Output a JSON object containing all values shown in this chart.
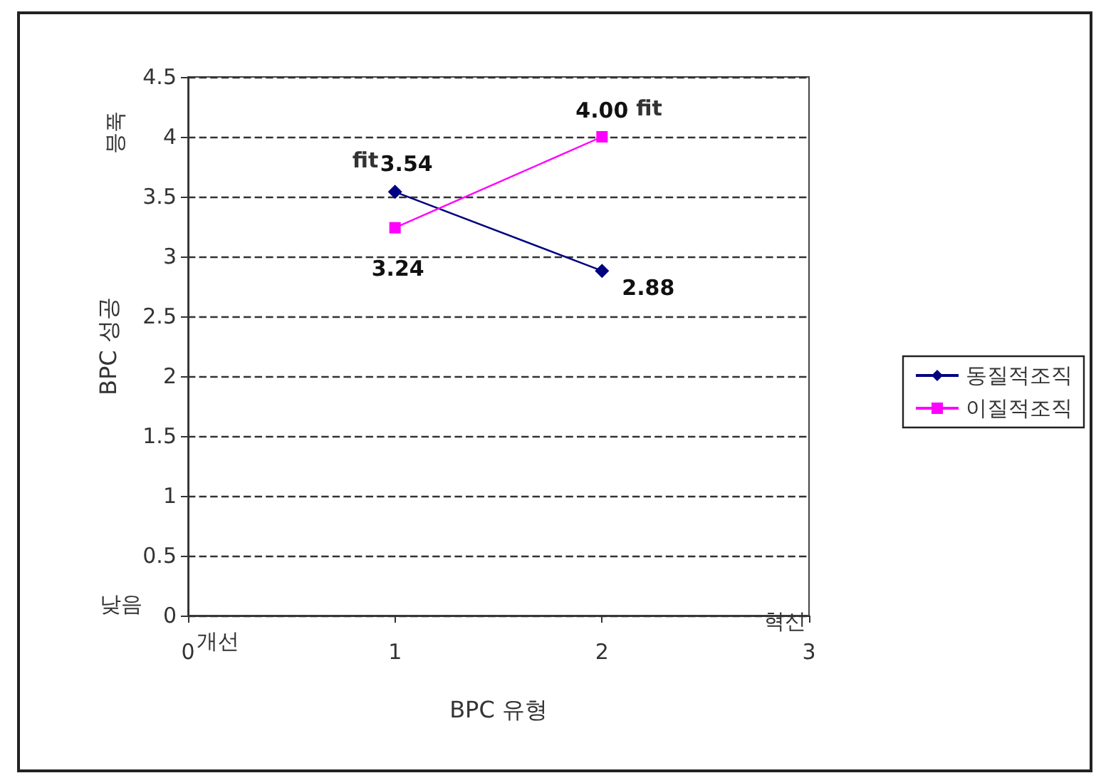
{
  "chart_data": {
    "type": "line",
    "x": [
      1,
      2
    ],
    "series": [
      {
        "name": "동질적조직",
        "color": "#000080",
        "marker": "diamond",
        "values": [
          3.54,
          2.88
        ],
        "value_labels": [
          "3.54",
          "2.88"
        ]
      },
      {
        "name": "이질적조직",
        "color": "#ff00ff",
        "marker": "square",
        "values": [
          3.24,
          4.0
        ],
        "value_labels": [
          "3.24",
          "4.00"
        ]
      }
    ],
    "xlabel": "BPC 유형",
    "ylabel": "BPC 성공",
    "xlim": [
      0,
      3
    ],
    "xticks": [
      0,
      1,
      2,
      3
    ],
    "ylim": [
      0,
      4.5
    ],
    "yticks": [
      0,
      0.5,
      1,
      1.5,
      2,
      2.5,
      3,
      3.5,
      4,
      4.5
    ],
    "grid": "y",
    "legend": "right",
    "annotations": [
      {
        "text": "fit",
        "x": 1,
        "y": 3.54
      },
      {
        "text": "fit",
        "x": 2,
        "y": 4.0
      },
      "높음",
      "낮음",
      "개선",
      "혁신"
    ]
  }
}
